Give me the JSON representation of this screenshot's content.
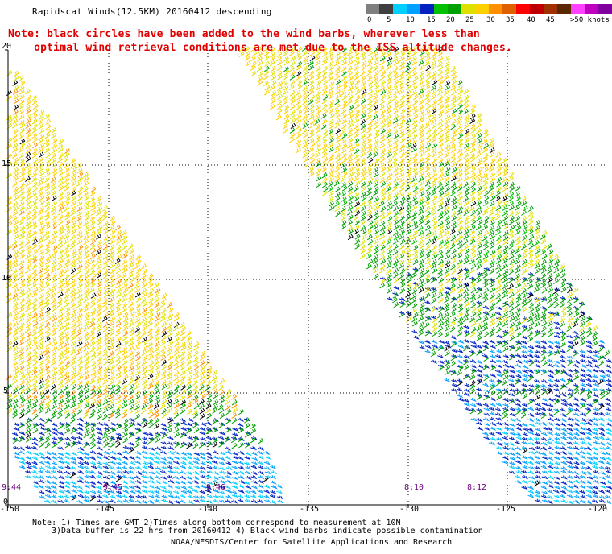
{
  "title": "Rapidscat Winds(12.5KM) 20160412 descending",
  "note_line1": "Note: black circles have been added to the wind barbs, wherever less than",
  "note_line2": "    optimal wind retrieval conditions are met due to the ISS altitude changes.",
  "legend": {
    "colors": [
      "#7f7f7f",
      "#3f3f3f",
      "#00d0ff",
      "#00a0ff",
      "#0020c0",
      "#00c000",
      "#00a000",
      "#e0e000",
      "#ffd000",
      "#ff9000",
      "#e06000",
      "#ff0000",
      "#c00000",
      "#a03000",
      "#5a2800",
      "#ff40ff",
      "#c000c0",
      "#8000a0",
      "#400050"
    ],
    "labels": [
      "0",
      "5",
      "10",
      "15",
      "20",
      "25",
      "30",
      "35",
      "40",
      "45",
      ">50 knots"
    ]
  },
  "axes": {
    "lon_labels": [
      "-150",
      "-145",
      "-140",
      "-135",
      "-130",
      "-125",
      "-120"
    ],
    "lat_labels": [
      "20",
      "15",
      "10",
      "5",
      "0"
    ]
  },
  "pass_times": [
    "9:44",
    "9:45",
    "9:46",
    "8:10",
    "8:12"
  ],
  "footer": {
    "line1": "Note: 1) Times are GMT 2)Times along bottom correspond to measurement at 10N",
    "line2": "3)Data buffer is 22 hrs from 20160412 4) Black wind barbs indicate possible contamination",
    "line3": "NOAA/NESDIS/Center for Satellite Applications and Research"
  }
}
